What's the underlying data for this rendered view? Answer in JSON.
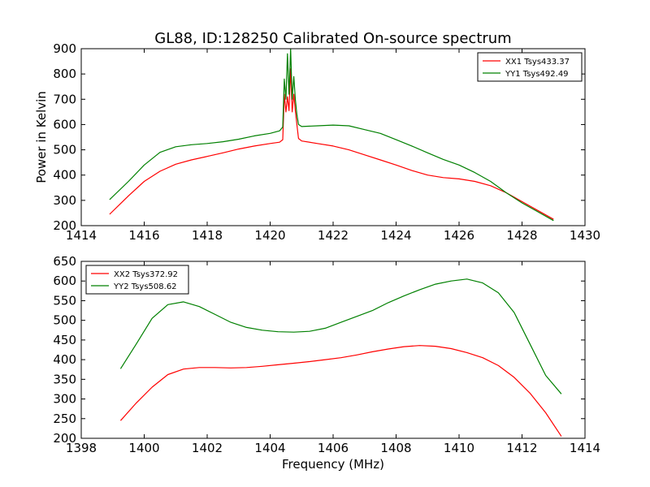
{
  "chart_data": [
    {
      "type": "line",
      "title": "GL88, ID:128250 Calibrated On-source spectrum",
      "xlabel": "",
      "ylabel": "Power in Kelvin",
      "xlim": [
        1414,
        1430
      ],
      "ylim": [
        200,
        900
      ],
      "xticks": [
        1414,
        1416,
        1418,
        1420,
        1422,
        1424,
        1426,
        1428,
        1430
      ],
      "yticks": [
        200,
        300,
        400,
        500,
        600,
        700,
        800,
        900
      ],
      "legend_position": "top-right",
      "series": [
        {
          "name": "XX1 Tsys433.37",
          "color": "#ff0000",
          "x": [
            1414.9,
            1415.5,
            1416.0,
            1416.5,
            1417.0,
            1417.5,
            1418.0,
            1418.5,
            1419.0,
            1419.5,
            1420.0,
            1420.3,
            1420.4,
            1420.45,
            1420.5,
            1420.55,
            1420.6,
            1420.65,
            1420.7,
            1420.75,
            1420.8,
            1420.85,
            1420.9,
            1421.0,
            1421.5,
            1422.0,
            1422.5,
            1423.0,
            1423.5,
            1424.0,
            1424.5,
            1425.0,
            1425.5,
            1426.0,
            1426.5,
            1427.0,
            1427.5,
            1428.0,
            1428.5,
            1429.0
          ],
          "values": [
            245,
            318,
            375,
            415,
            443,
            460,
            474,
            488,
            503,
            515,
            525,
            530,
            540,
            720,
            650,
            710,
            655,
            820,
            650,
            720,
            655,
            600,
            545,
            535,
            525,
            515,
            500,
            480,
            460,
            440,
            418,
            400,
            390,
            385,
            375,
            358,
            330,
            295,
            260,
            225
          ]
        },
        {
          "name": "YY1 Tsys492.49",
          "color": "#008000",
          "x": [
            1414.9,
            1415.5,
            1416.0,
            1416.5,
            1417.0,
            1417.5,
            1418.0,
            1418.5,
            1419.0,
            1419.5,
            1420.0,
            1420.3,
            1420.4,
            1420.45,
            1420.5,
            1420.55,
            1420.6,
            1420.65,
            1420.7,
            1420.75,
            1420.8,
            1420.85,
            1420.9,
            1421.0,
            1421.5,
            1422.0,
            1422.5,
            1423.0,
            1423.5,
            1424.0,
            1424.5,
            1425.0,
            1425.5,
            1426.0,
            1426.5,
            1427.0,
            1427.5,
            1428.0,
            1428.5,
            1429.0
          ],
          "values": [
            303,
            375,
            440,
            490,
            512,
            520,
            525,
            532,
            542,
            555,
            565,
            575,
            590,
            780,
            700,
            880,
            720,
            900,
            700,
            790,
            700,
            640,
            600,
            592,
            595,
            598,
            595,
            580,
            565,
            540,
            515,
            488,
            462,
            440,
            410,
            375,
            330,
            290,
            255,
            220
          ]
        }
      ]
    },
    {
      "type": "line",
      "title": "",
      "xlabel": "Frequency (MHz)",
      "ylabel": "",
      "xlim": [
        1398,
        1414
      ],
      "ylim": [
        200,
        650
      ],
      "xticks": [
        1398,
        1400,
        1402,
        1404,
        1406,
        1408,
        1410,
        1412,
        1414
      ],
      "yticks": [
        200,
        250,
        300,
        350,
        400,
        450,
        500,
        550,
        600,
        650
      ],
      "legend_position": "top-left",
      "series": [
        {
          "name": "XX2 Tsys372.92",
          "color": "#ff0000",
          "x": [
            1399.25,
            1399.75,
            1400.25,
            1400.75,
            1401.25,
            1401.75,
            1402.25,
            1402.75,
            1403.25,
            1403.75,
            1404.25,
            1404.75,
            1405.25,
            1405.75,
            1406.25,
            1406.75,
            1407.25,
            1407.75,
            1408.25,
            1408.75,
            1409.25,
            1409.75,
            1410.25,
            1410.75,
            1411.25,
            1411.75,
            1412.25,
            1412.75,
            1413.25
          ],
          "values": [
            245,
            290,
            330,
            362,
            376,
            380,
            380,
            379,
            380,
            383,
            387,
            391,
            395,
            400,
            405,
            412,
            420,
            427,
            433,
            436,
            434,
            428,
            418,
            405,
            385,
            355,
            315,
            265,
            205
          ]
        },
        {
          "name": "YY2 Tsys508.62",
          "color": "#008000",
          "x": [
            1399.25,
            1399.75,
            1400.25,
            1400.75,
            1401.25,
            1401.75,
            1402.25,
            1402.75,
            1403.25,
            1403.75,
            1404.25,
            1404.75,
            1405.25,
            1405.75,
            1406.25,
            1406.75,
            1407.25,
            1407.75,
            1408.25,
            1408.75,
            1409.25,
            1409.75,
            1410.25,
            1410.75,
            1411.25,
            1411.75,
            1412.25,
            1412.75,
            1413.25
          ],
          "values": [
            377,
            440,
            505,
            540,
            547,
            535,
            515,
            495,
            482,
            475,
            471,
            470,
            472,
            480,
            495,
            510,
            525,
            545,
            562,
            578,
            592,
            600,
            605,
            595,
            570,
            520,
            440,
            360,
            313
          ]
        }
      ]
    }
  ]
}
